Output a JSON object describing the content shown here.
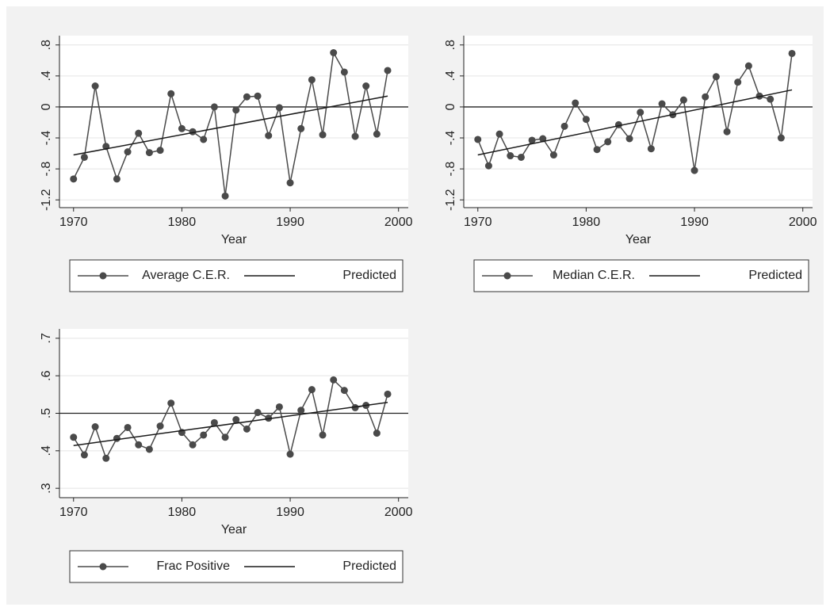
{
  "chart_data": [
    {
      "type": "line",
      "xlabel": "Year",
      "x": [
        1970,
        1971,
        1972,
        1973,
        1974,
        1975,
        1976,
        1977,
        1978,
        1979,
        1980,
        1981,
        1982,
        1983,
        1984,
        1985,
        1986,
        1987,
        1988,
        1989,
        1990,
        1991,
        1992,
        1993,
        1994,
        1995,
        1996,
        1997,
        1998,
        1999
      ],
      "series": [
        {
          "name": "Average C.E.R.",
          "color": "#4a4a4a",
          "marker": true,
          "values": [
            -0.93,
            -0.65,
            0.27,
            -0.51,
            -0.93,
            -0.58,
            -0.34,
            -0.59,
            -0.56,
            0.17,
            -0.28,
            -0.32,
            -0.42,
            0.0,
            -1.15,
            -0.04,
            0.13,
            0.14,
            -0.37,
            -0.01,
            -0.98,
            -0.28,
            0.35,
            -0.36,
            0.7,
            0.45,
            -0.38,
            0.27,
            -0.35,
            0.47
          ]
        },
        {
          "name": "Predicted",
          "color": "#1a1a1a",
          "marker": false,
          "x": [
            1970,
            1999
          ],
          "values": [
            -0.62,
            0.14
          ]
        }
      ],
      "xlim": [
        1968.7,
        2000.9
      ],
      "xticks": [
        1970,
        1980,
        1990,
        2000
      ],
      "ylim": [
        -1.3,
        0.92
      ],
      "yticks": [
        {
          "value": -1.2,
          "label": "-1.2"
        },
        {
          "value": -0.8,
          "label": "-.8"
        },
        {
          "value": -0.4,
          "label": "-.4"
        },
        0,
        {
          "value": 0.4,
          "label": ".4"
        },
        {
          "value": 0.8,
          "label": ".8"
        }
      ],
      "hline": 0,
      "grid": true,
      "legend": "bottom"
    },
    {
      "type": "line",
      "xlabel": "Year",
      "x": [
        1970,
        1971,
        1972,
        1973,
        1974,
        1975,
        1976,
        1977,
        1978,
        1979,
        1980,
        1981,
        1982,
        1983,
        1984,
        1985,
        1986,
        1987,
        1988,
        1989,
        1990,
        1991,
        1992,
        1993,
        1994,
        1995,
        1996,
        1997,
        1998,
        1999
      ],
      "series": [
        {
          "name": "Median C.E.R.",
          "color": "#4a4a4a",
          "marker": true,
          "values": [
            -0.42,
            -0.76,
            -0.35,
            -0.63,
            -0.65,
            -0.43,
            -0.41,
            -0.62,
            -0.25,
            0.05,
            -0.16,
            -0.55,
            -0.45,
            -0.23,
            -0.41,
            -0.07,
            -0.54,
            0.04,
            -0.1,
            0.09,
            -0.82,
            0.13,
            0.39,
            -0.32,
            0.32,
            0.53,
            0.14,
            0.1,
            -0.4,
            0.69
          ]
        },
        {
          "name": "Predicted",
          "color": "#1a1a1a",
          "marker": false,
          "x": [
            1970,
            1999
          ],
          "values": [
            -0.62,
            0.22
          ]
        }
      ],
      "xlim": [
        1968.7,
        2000.9
      ],
      "xticks": [
        1970,
        1980,
        1990,
        2000
      ],
      "ylim": [
        -1.3,
        0.92
      ],
      "yticks": [
        {
          "value": -1.2,
          "label": "-1.2"
        },
        {
          "value": -0.8,
          "label": "-.8"
        },
        {
          "value": -0.4,
          "label": "-.4"
        },
        0,
        {
          "value": 0.4,
          "label": ".4"
        },
        {
          "value": 0.8,
          "label": ".8"
        }
      ],
      "hline": 0,
      "grid": true,
      "legend": "bottom"
    },
    {
      "type": "line",
      "xlabel": "Year",
      "x": [
        1970,
        1971,
        1972,
        1973,
        1974,
        1975,
        1976,
        1977,
        1978,
        1979,
        1980,
        1981,
        1982,
        1983,
        1984,
        1985,
        1986,
        1987,
        1988,
        1989,
        1990,
        1991,
        1992,
        1993,
        1994,
        1995,
        1996,
        1997,
        1998,
        1999
      ],
      "series": [
        {
          "name": "Frac Positive",
          "color": "#4a4a4a",
          "marker": true,
          "values": [
            0.436,
            0.389,
            0.464,
            0.38,
            0.433,
            0.462,
            0.416,
            0.404,
            0.466,
            0.527,
            0.449,
            0.416,
            0.442,
            0.475,
            0.436,
            0.483,
            0.458,
            0.502,
            0.487,
            0.517,
            0.391,
            0.508,
            0.563,
            0.442,
            0.589,
            0.561,
            0.515,
            0.521,
            0.447,
            0.551
          ]
        },
        {
          "name": "Predicted",
          "color": "#1a1a1a",
          "marker": false,
          "x": [
            1970,
            1999
          ],
          "values": [
            0.414,
            0.529
          ]
        }
      ],
      "xlim": [
        1968.7,
        2000.9
      ],
      "xticks": [
        1970,
        1980,
        1990,
        2000
      ],
      "ylim": [
        0.275,
        0.725
      ],
      "yticks": [
        {
          "value": 0.3,
          "label": ".3"
        },
        {
          "value": 0.4,
          "label": ".4"
        },
        {
          "value": 0.5,
          "label": ".5"
        },
        {
          "value": 0.6,
          "label": ".6"
        },
        {
          "value": 0.7,
          "label": ".7"
        }
      ],
      "hline": 0.5,
      "grid": true,
      "legend": "bottom"
    }
  ]
}
